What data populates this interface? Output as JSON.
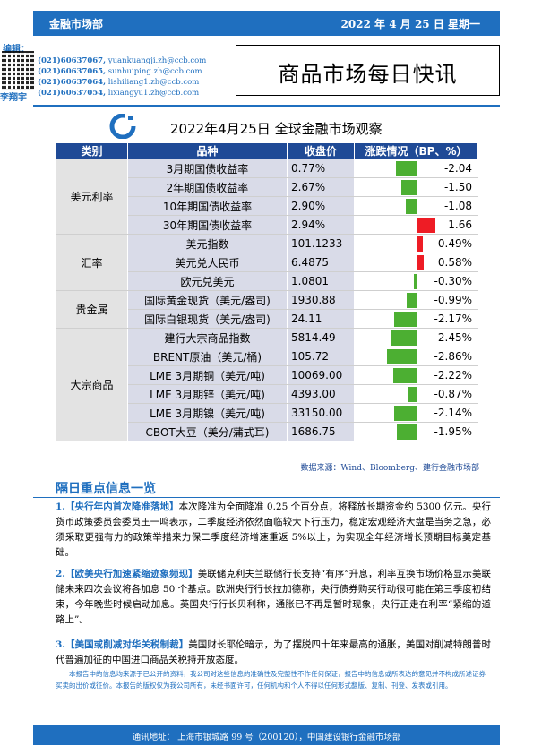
{
  "header": {
    "dept": "金融市场部",
    "date": "2022 年 4 月 25 日  星期一"
  },
  "editors": {
    "label": "编辑：",
    "contacts": [
      {
        "phone": "(021)60637067,",
        "email": "yuankuangji.zh@ccb.com"
      },
      {
        "phone": "(021)60637065,",
        "email": "sunhuiping.zh@ccb.com"
      },
      {
        "phone": "(021)60637064,",
        "email": "lishiliang1.zh@ccb.com"
      },
      {
        "phone": "(021)60637054,",
        "email": "lixiangyu1.zh@ccb.com"
      }
    ],
    "last_name": "李翔宇"
  },
  "title": "商品市场每日快讯",
  "subtitle": "2022年4月25日 全球金融市场观察",
  "table": {
    "headers": [
      "类别",
      "品种",
      "收盘价",
      "涨跌情况（BP、%）"
    ],
    "categories": [
      "美元利率",
      "汇率",
      "贵金属",
      "大宗商品"
    ],
    "rows": [
      {
        "item": "3月期国债收益率",
        "close": "0.77%",
        "change": "-2.04",
        "value": -2.04
      },
      {
        "item": "2年期国债收益率",
        "close": "2.67%",
        "change": "-1.50",
        "value": -1.5
      },
      {
        "item": "10年期国债收益率",
        "close": "2.90%",
        "change": "-1.08",
        "value": -1.08
      },
      {
        "item": "30年期国债收益率",
        "close": "2.94%",
        "change": "1.66",
        "value": 1.66
      },
      {
        "item": "美元指数",
        "close": "101.1233",
        "change": "0.49%",
        "value": 0.49
      },
      {
        "item": "美元兑人民币",
        "close": "6.4875",
        "change": "0.58%",
        "value": 0.58
      },
      {
        "item": "欧元兑美元",
        "close": "1.0801",
        "change": "-0.30%",
        "value": -0.3
      },
      {
        "item": "国际黄金现货（美元/盎司)",
        "close": "1930.88",
        "change": "-0.99%",
        "value": -0.99
      },
      {
        "item": "国际白银现货（美元/盎司)",
        "close": "24.11",
        "change": "-2.17%",
        "value": -2.17
      },
      {
        "item": "建行大宗商品指数",
        "close": "5814.49",
        "change": "-2.45%",
        "value": -2.45
      },
      {
        "item": "BRENT原油（美元/桶)",
        "close": "105.72",
        "change": "-2.86%",
        "value": -2.86
      },
      {
        "item": "LME 3月期铜（美元/吨)",
        "close": "10069.00",
        "change": "-2.22%",
        "value": -2.22
      },
      {
        "item": "LME 3月期锌（美元/吨)",
        "close": "4393.00",
        "change": "-0.87%",
        "value": -0.87
      },
      {
        "item": "LME 3月期镍（美元/吨)",
        "close": "33150.00",
        "change": "-2.14%",
        "value": -2.14
      },
      {
        "item": "CBOT大豆（美分/蒲式耳)",
        "close": "1686.75",
        "change": "-1.95%",
        "value": -1.95
      }
    ],
    "colors": {
      "negative": "#4caf32",
      "positive": "#ee1c25"
    }
  },
  "source": "数据来源：Wind、Bloomberg、建行金融市场部",
  "section_title": "隔日重点信息一览",
  "news": [
    {
      "head": "1.【央行年内首次降准落地】",
      "body": "本次降准为全面降准 0.25 个百分点，将释放长期资金约 5300 亿元。央行货币政策委员会委员王一鸣表示，二季度经济依然面临较大下行压力，稳定宏观经济大盘是当务之急，必须采取更强有力的政策举措来力保二季度经济增速重返 5%以上，为实现全年经济增长预期目标奠定基础。"
    },
    {
      "head": "2.【欧美央行加速紧缩迹象频现】",
      "body": "美联储克利夫兰联储行长支持“有序”升息，利率互换市场价格显示美联储未来四次会议将各加息 50 个基点。欧洲央行行长拉加德称，央行债券购买行动很可能在第三季度初结束，今年晚些时候启动加息。英国央行行长贝利称，通胀已不再是暂时现象，央行正走在利率“紧缩的道路上”。"
    },
    {
      "head": "3.【美国或削减对华关税制裁】",
      "body": "美国财长耶伦暗示，为了摆脱四十年来最高的通胀，美国对削减特朗普时代普遍加征的中国进口商品关税持开放态度。"
    }
  ],
  "disclaimer": "本报告中的信息均来源于已公开的资料，我公司对这些信息的准确性及完整性不作任何保证，报告中的信息或所表达的意见并不构成所述证券买卖的出价或征价。本报告的版权仅为我公司所有，未经书面许可，任何机构和个人不得以任何形式翻版、复制、刊登、发表或引用。",
  "footer": "通讯地址：  上海市银城路 99 号（200120），中国建设银行金融市场部"
}
